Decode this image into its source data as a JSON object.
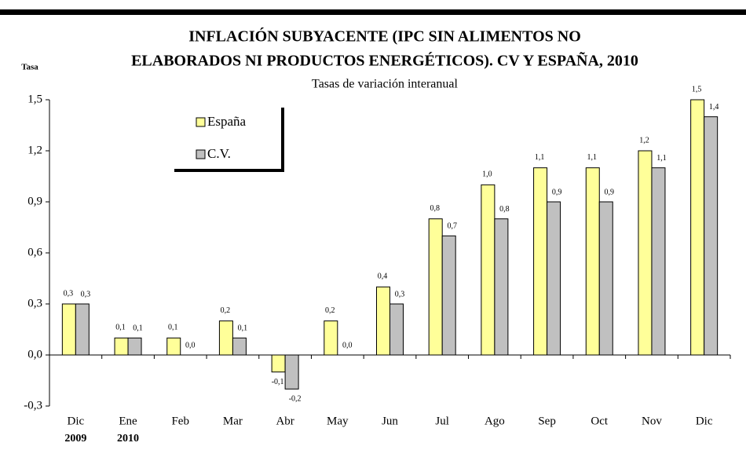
{
  "chart_data": {
    "type": "bar",
    "title_lines": [
      "INFLACIÓN SUBYACENTE  (IPC SIN ALIMENTOS NO",
      "ELABORADOS NI PRODUCTOS ENERGÉTICOS). CV Y ESPAÑA, 2010"
    ],
    "subtitle": "Tasas de variación interanual",
    "y_label": "Tasa",
    "categories": [
      "Dic",
      "Ene",
      "Feb",
      "Mar",
      "Abr",
      "May",
      "Jun",
      "Jul",
      "Ago",
      "Sep",
      "Oct",
      "Nov",
      "Dic"
    ],
    "category_years": [
      "2009",
      "2010",
      null,
      null,
      null,
      null,
      null,
      null,
      null,
      null,
      null,
      null,
      null
    ],
    "series": [
      {
        "name": "España",
        "color": "#ffff99",
        "values": [
          0.3,
          0.1,
          0.1,
          0.2,
          -0.1,
          0.2,
          0.4,
          0.8,
          1.0,
          1.1,
          1.1,
          1.2,
          1.5
        ],
        "value_labels": [
          "0,3",
          "0,1",
          "0,1",
          "0,2",
          "-0,1",
          "0,2",
          "0,4",
          "0,8",
          "1,0",
          "1,1",
          "1,1",
          "1,2",
          "1,5"
        ]
      },
      {
        "name": "C.V.",
        "color": "#c0c0c0",
        "values": [
          0.3,
          0.1,
          0.0,
          0.1,
          -0.2,
          0.0,
          0.3,
          0.7,
          0.8,
          0.9,
          0.9,
          1.1,
          1.4
        ],
        "value_labels": [
          "0,3",
          "0,1",
          "0,0",
          "0,1",
          "-0,2",
          "0,0",
          "0,3",
          "0,7",
          "0,8",
          "0,9",
          "0,9",
          "1,1",
          "1,4"
        ]
      }
    ],
    "ylim": [
      -0.3,
      1.5
    ],
    "yticks": [
      {
        "value": -0.3,
        "label": "-0,3"
      },
      {
        "value": 0,
        "label": "0,0"
      },
      {
        "value": 0.3,
        "label": "0,3"
      },
      {
        "value": 0.6,
        "label": "0,6"
      },
      {
        "value": 0.9,
        "label": "0,9"
      },
      {
        "value": 1.2,
        "label": "1,2"
      },
      {
        "value": 1.5,
        "label": "1,5"
      }
    ],
    "legend": "upper left",
    "grid": false
  }
}
